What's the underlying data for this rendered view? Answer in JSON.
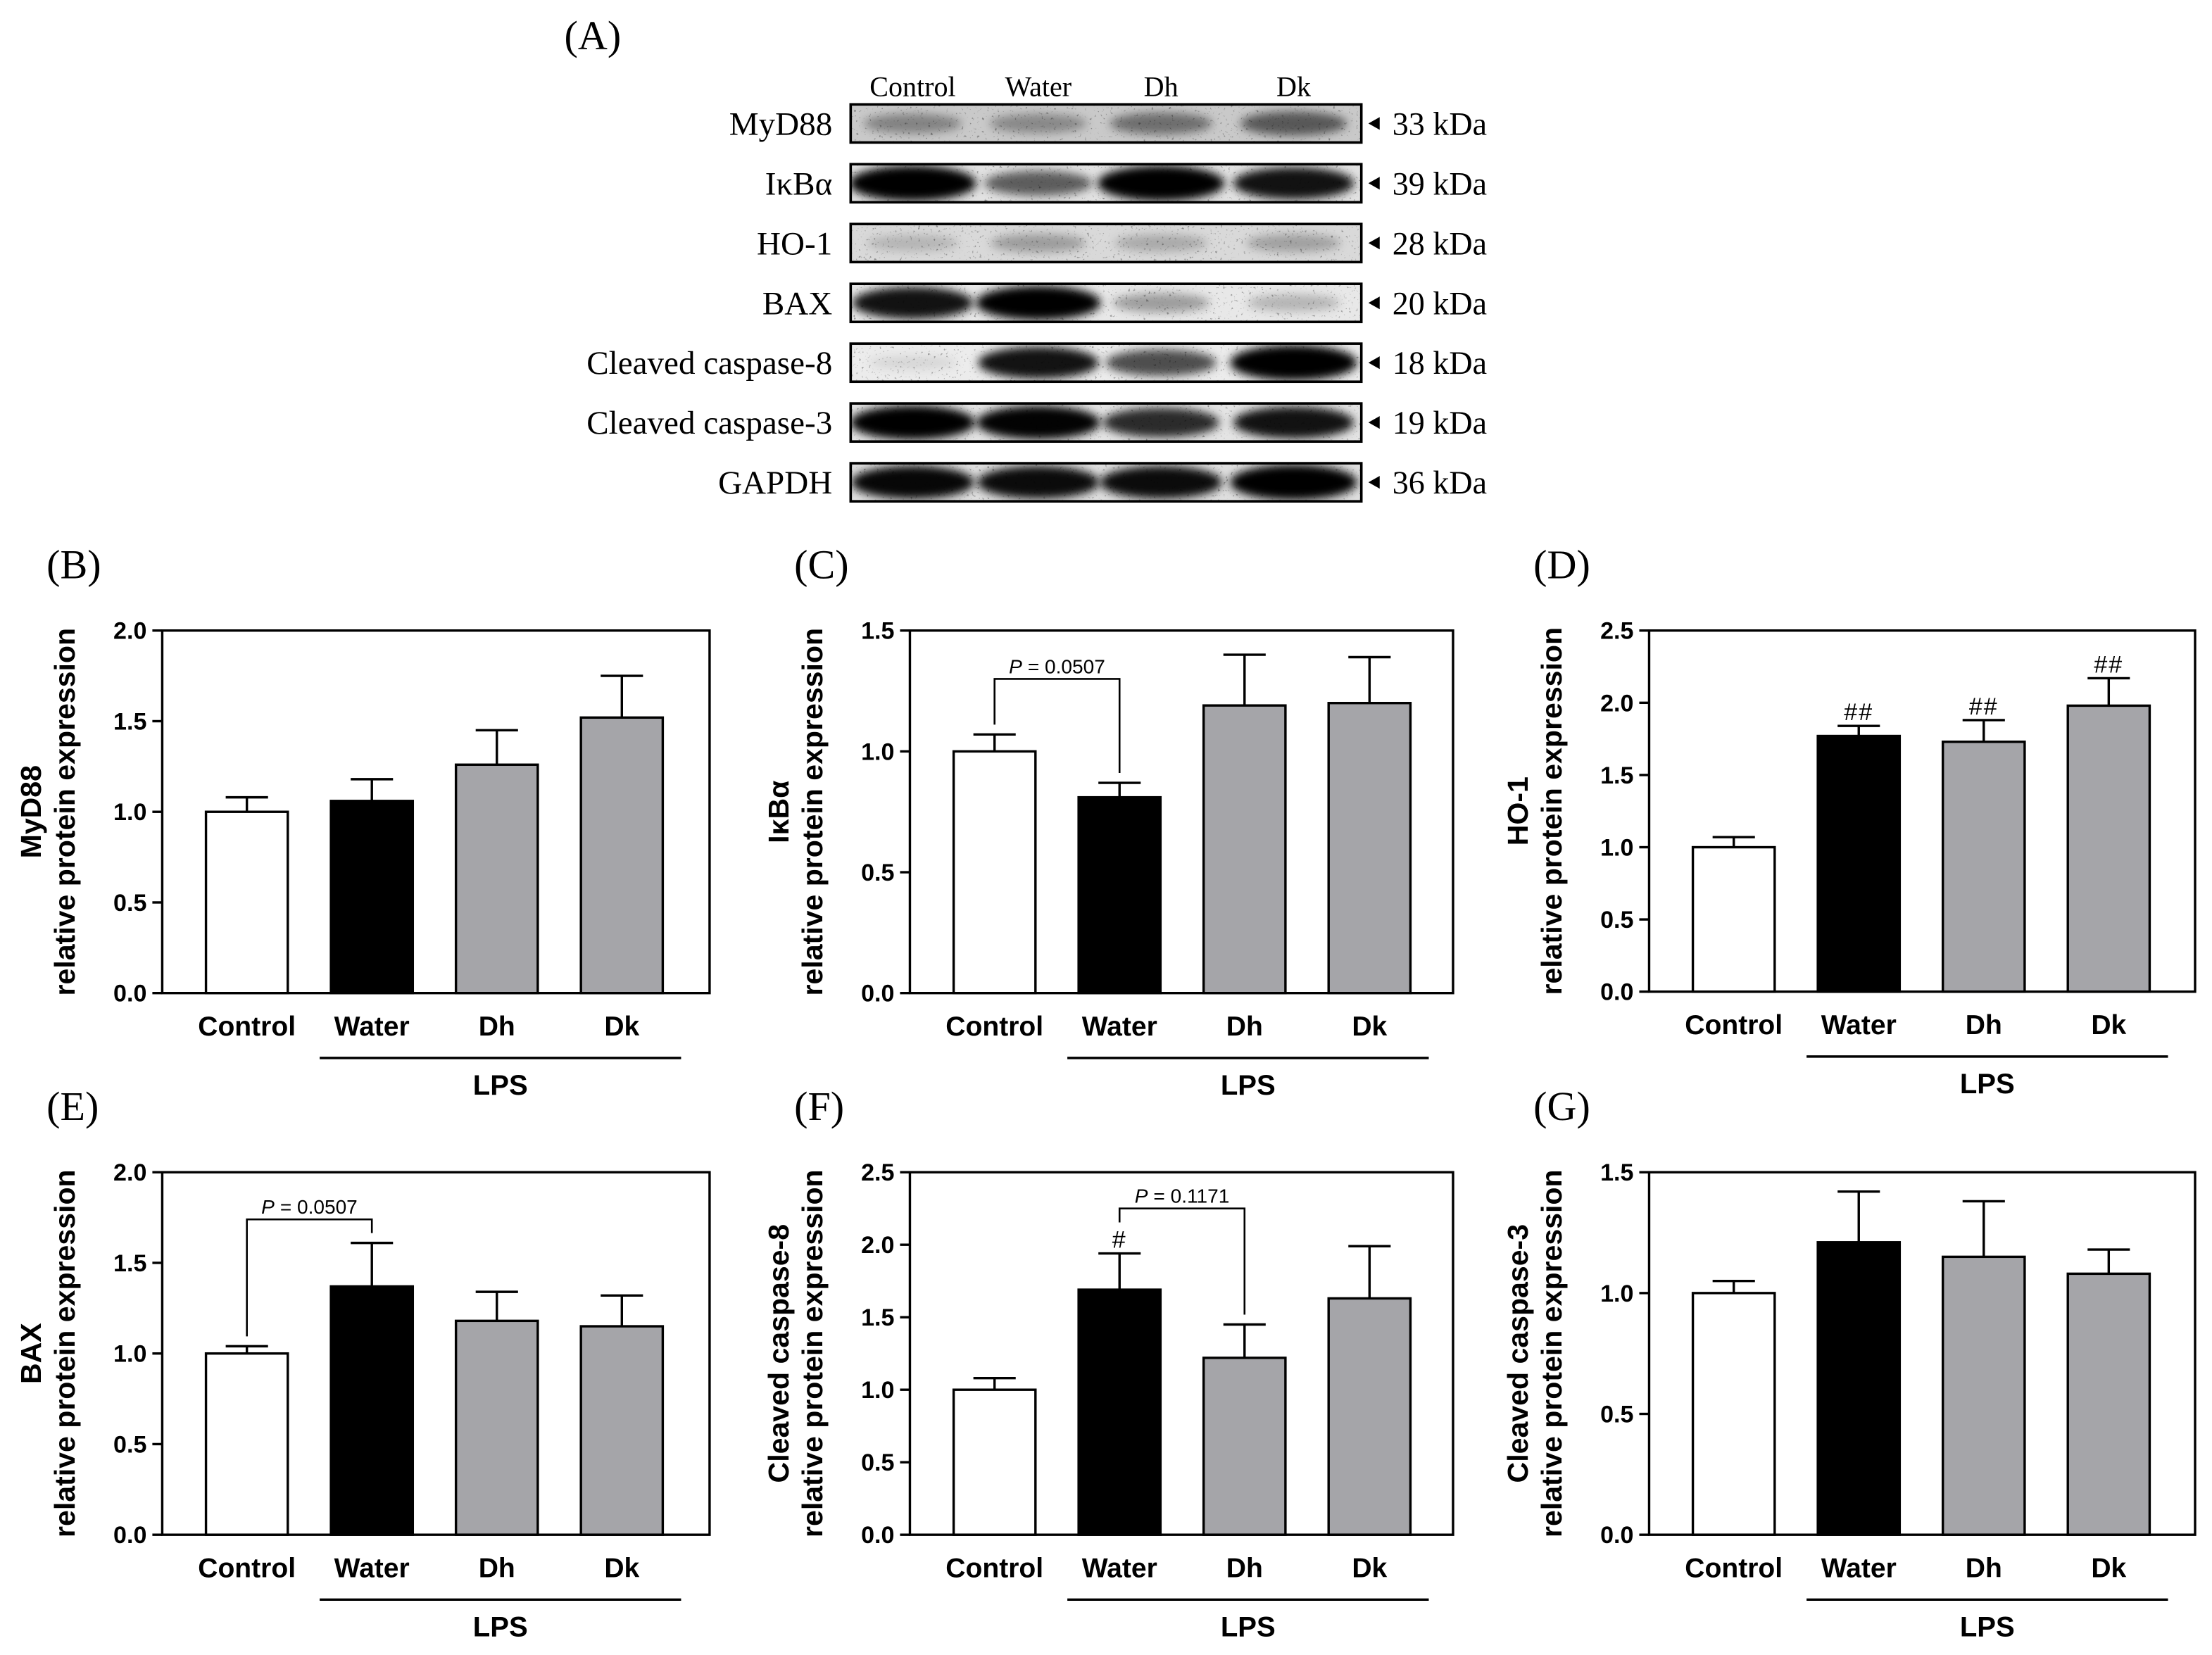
{
  "panel_a": {
    "label": "(A)",
    "lanes": [
      "Control",
      "Water",
      "Dh",
      "Dk"
    ],
    "rows": [
      {
        "protein": "MyD88",
        "size": "33 kDa",
        "bg": "#c9c9c9",
        "band_intensity": [
          0.32,
          0.3,
          0.42,
          0.52
        ]
      },
      {
        "protein": "IκBα",
        "size": "39 kDa",
        "bg": "#e2e2e2",
        "band_intensity": [
          1.0,
          0.55,
          1.0,
          0.85
        ]
      },
      {
        "protein": "HO-1",
        "size": "28 kDa",
        "bg": "#d9d9d9",
        "band_intensity": [
          0.16,
          0.26,
          0.2,
          0.24
        ]
      },
      {
        "protein": "BAX",
        "size": "20 kDa",
        "bg": "#e8e8e8",
        "band_intensity": [
          0.85,
          0.95,
          0.3,
          0.2
        ]
      },
      {
        "protein": "Cleaved caspase-8",
        "size": "18 kDa",
        "bg": "#ececec",
        "band_intensity": [
          0.08,
          0.85,
          0.62,
          1.0
        ]
      },
      {
        "protein": "Cleaved caspase-3",
        "size": "19 kDa",
        "bg": "#e4e4e4",
        "band_intensity": [
          0.95,
          0.92,
          0.75,
          0.85
        ]
      },
      {
        "protein": "GAPDH",
        "size": "36 kDa",
        "bg": "#dfdfdf",
        "band_intensity": [
          0.9,
          0.88,
          0.88,
          1.0
        ]
      }
    ]
  },
  "chart_data": [
    {
      "panel": "(B)",
      "type": "bar",
      "title": "",
      "xlabel": "",
      "ylabel": [
        "MyD88",
        "relative protein expression"
      ],
      "categories": [
        "Control",
        "Water",
        "Dh",
        "Dk"
      ],
      "values": [
        1.0,
        1.06,
        1.26,
        1.52
      ],
      "errors": [
        0.08,
        0.12,
        0.19,
        0.23
      ],
      "ylim": [
        0,
        2.0
      ],
      "yticks": [
        "0.0",
        "0.5",
        "1.0",
        "1.5",
        "2.0"
      ],
      "group": {
        "label": "LPS",
        "from": 1,
        "to": 3
      },
      "colors": [
        "#ffffff",
        "#000000",
        "#a5a5a9",
        "#a5a5a9"
      ],
      "markers": [],
      "brackets": []
    },
    {
      "panel": "(C)",
      "type": "bar",
      "title": "",
      "xlabel": "",
      "ylabel": [
        "IκBα",
        "relative protein expression"
      ],
      "categories": [
        "Control",
        "Water",
        "Dh",
        "Dk"
      ],
      "values": [
        1.0,
        0.81,
        1.19,
        1.2
      ],
      "errors": [
        0.07,
        0.06,
        0.21,
        0.19
      ],
      "ylim": [
        0,
        1.5
      ],
      "yticks": [
        "0.0",
        "0.5",
        "1.0",
        "1.5"
      ],
      "group": {
        "label": "LPS",
        "from": 1,
        "to": 3
      },
      "colors": [
        "#ffffff",
        "#000000",
        "#a5a5a9",
        "#a5a5a9"
      ],
      "markers": [],
      "brackets": [
        {
          "from": 0,
          "to": 1,
          "y": 1.3,
          "p": "P",
          "text": "= 0.0507"
        }
      ]
    },
    {
      "panel": "(D)",
      "type": "bar",
      "title": "",
      "xlabel": "",
      "ylabel": [
        "HO-1",
        "relative protein expression"
      ],
      "categories": [
        "Control",
        "Water",
        "Dh",
        "Dk"
      ],
      "values": [
        1.0,
        1.77,
        1.73,
        1.98
      ],
      "errors": [
        0.07,
        0.07,
        0.15,
        0.19
      ],
      "ylim": [
        0,
        2.5
      ],
      "yticks": [
        "0.0",
        "0.5",
        "1.0",
        "1.5",
        "2.0",
        "2.5"
      ],
      "group": {
        "label": "LPS",
        "from": 1,
        "to": 3
      },
      "colors": [
        "#ffffff",
        "#000000",
        "#a5a5a9",
        "#a5a5a9"
      ],
      "markers": [
        {
          "index": 1,
          "text": "##"
        },
        {
          "index": 2,
          "text": "##"
        },
        {
          "index": 3,
          "text": "##"
        }
      ],
      "brackets": []
    },
    {
      "panel": "(E)",
      "type": "bar",
      "title": "",
      "xlabel": "",
      "ylabel": [
        "BAX",
        "relative protein expression"
      ],
      "categories": [
        "Control",
        "Water",
        "Dh",
        "Dk"
      ],
      "values": [
        1.0,
        1.37,
        1.18,
        1.15
      ],
      "errors": [
        0.04,
        0.24,
        0.16,
        0.17
      ],
      "ylim": [
        0,
        2.0
      ],
      "yticks": [
        "0.0",
        "0.5",
        "1.0",
        "1.5",
        "2.0"
      ],
      "group": {
        "label": "LPS",
        "from": 1,
        "to": 3
      },
      "colors": [
        "#ffffff",
        "#000000",
        "#a5a5a9",
        "#a5a5a9"
      ],
      "markers": [],
      "brackets": [
        {
          "from": 0,
          "to": 1,
          "y": 1.74,
          "p": "P",
          "text": "= 0.0507"
        }
      ]
    },
    {
      "panel": "(F)",
      "type": "bar",
      "title": "",
      "xlabel": "",
      "ylabel": [
        "Cleaved caspase-8",
        "relative protein expression"
      ],
      "categories": [
        "Control",
        "Water",
        "Dh",
        "Dk"
      ],
      "values": [
        1.0,
        1.69,
        1.22,
        1.63
      ],
      "errors": [
        0.08,
        0.25,
        0.23,
        0.36
      ],
      "ylim": [
        0,
        2.5
      ],
      "yticks": [
        "0.0",
        "0.5",
        "1.0",
        "1.5",
        "2.0",
        "2.5"
      ],
      "group": {
        "label": "LPS",
        "from": 1,
        "to": 3
      },
      "colors": [
        "#ffffff",
        "#000000",
        "#a5a5a9",
        "#a5a5a9"
      ],
      "markers": [
        {
          "index": 1,
          "text": "#"
        }
      ],
      "brackets": [
        {
          "from": 1,
          "to": 2,
          "y": 2.25,
          "p": "P",
          "text": "= 0.1171"
        }
      ]
    },
    {
      "panel": "(G)",
      "type": "bar",
      "title": "",
      "xlabel": "",
      "ylabel": [
        "Cleaved caspase-3",
        "relative protein expression"
      ],
      "categories": [
        "Control",
        "Water",
        "Dh",
        "Dk"
      ],
      "values": [
        1.0,
        1.21,
        1.15,
        1.08
      ],
      "errors": [
        0.05,
        0.21,
        0.23,
        0.1
      ],
      "ylim": [
        0,
        1.5
      ],
      "yticks": [
        "0.0",
        "0.5",
        "1.0",
        "1.5"
      ],
      "group": {
        "label": "LPS",
        "from": 1,
        "to": 3
      },
      "colors": [
        "#ffffff",
        "#000000",
        "#a5a5a9",
        "#a5a5a9"
      ],
      "markers": [],
      "brackets": []
    }
  ]
}
